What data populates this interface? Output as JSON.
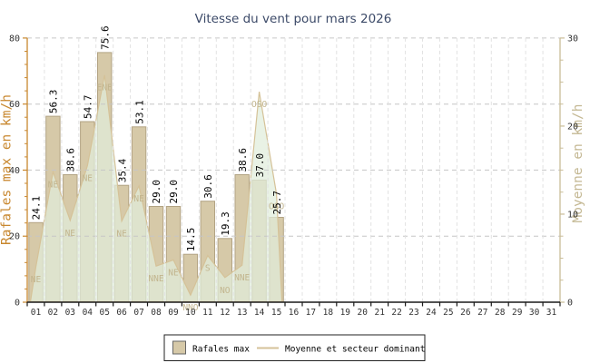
{
  "page_title": "Vitesse du vent pour mars 2026",
  "chart_data": {
    "type": "bar",
    "title": "Vitesse du vent pour mars 2026",
    "x_categories": [
      "01",
      "02",
      "03",
      "04",
      "05",
      "06",
      "07",
      "08",
      "09",
      "10",
      "11",
      "12",
      "13",
      "14",
      "15",
      "16",
      "17",
      "18",
      "19",
      "20",
      "21",
      "22",
      "23",
      "24",
      "25",
      "26",
      "27",
      "28",
      "29",
      "30",
      "31"
    ],
    "series": [
      {
        "name": "Rafales max",
        "type": "bar",
        "axis": "left",
        "unit": "km/h",
        "values": [
          24.1,
          56.3,
          38.6,
          54.7,
          75.6,
          35.4,
          53.1,
          29.0,
          29.0,
          14.5,
          30.6,
          19.3,
          38.6,
          37.0,
          25.7,
          null,
          null,
          null,
          null,
          null,
          null,
          null,
          null,
          null,
          null,
          null,
          null,
          null,
          null,
          null,
          null
        ]
      },
      {
        "name": "Moyenne et secteur dominant",
        "type": "line-area",
        "axis": "right",
        "unit": "km/h",
        "values": [
          4.0,
          14.8,
          9.3,
          15.5,
          25.8,
          9.2,
          13.2,
          4.1,
          4.8,
          0.8,
          5.3,
          2.8,
          4.2,
          23.9,
          12.3,
          null,
          null,
          null,
          null,
          null,
          null,
          null,
          null,
          null,
          null,
          null,
          null,
          null,
          null,
          null,
          null
        ],
        "sector_labels": [
          "NE",
          "NE",
          "NE",
          "NE",
          "ENE",
          "NE",
          "NE",
          "NNE",
          "NE",
          "NNO",
          "S",
          "NO",
          "NNE",
          "OSO",
          "OSO",
          null,
          null,
          null,
          null,
          null,
          null,
          null,
          null,
          null,
          null,
          null,
          null,
          null,
          null,
          null,
          null
        ]
      }
    ],
    "left_axis": {
      "label": "Rafales max en km/h",
      "min": 0,
      "max": 80,
      "major_ticks": [
        0,
        20,
        40,
        60,
        80
      ],
      "minor_step": 4
    },
    "right_axis": {
      "label": "Moyenne en km/h",
      "min": 0,
      "max": 30,
      "major_ticks": [
        0,
        10,
        20,
        30
      ],
      "minor_step": 2.5
    },
    "grid": true,
    "legend": {
      "position": "bottom",
      "items": [
        {
          "label": "Rafales max",
          "swatch": "bar"
        },
        {
          "label": "Moyenne et secteur dominant",
          "swatch": "line"
        }
      ]
    }
  },
  "colors": {
    "title": "#3c4a68",
    "axis_left": "#c8872e",
    "axis_left_label": "#c8872e",
    "axis_right": "#c9bc97",
    "axis_right_label": "#c4b893",
    "axis_bottom": "#1a1a1a",
    "tick_text": "#333333",
    "bar_fill": "#d6c9a8",
    "bar_border": "#b2a383",
    "line": "#d5c298",
    "area_fill": "rgba(225,237,219,0.72)",
    "direction_text": "#c2b58e",
    "bar_value_text": "#000000",
    "grid_h": "#c6c6c6",
    "grid_v": "#e2e2e2",
    "legend_border": "#222222"
  }
}
